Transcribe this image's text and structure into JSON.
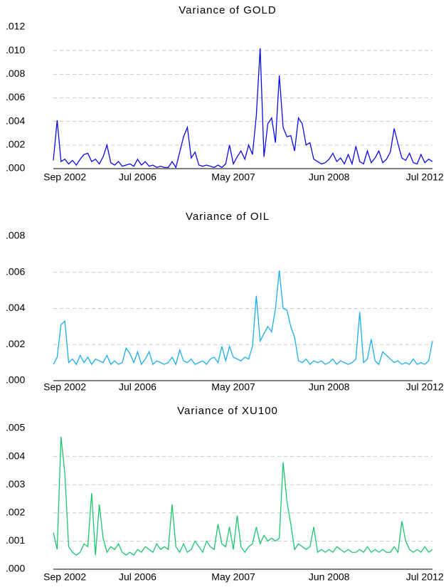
{
  "chart_data": [
    {
      "type": "line",
      "title": "Variance of GOLD",
      "color": "#0a0aee",
      "categories": [
        null,
        null,
        null,
        "Sep 2002",
        null,
        null,
        null,
        null,
        null,
        null,
        null,
        null,
        null,
        null,
        null,
        null,
        null,
        null,
        null,
        null,
        null,
        null,
        "Jul 2006",
        null,
        null,
        null,
        null,
        null,
        null,
        null,
        null,
        null,
        null,
        null,
        null,
        null,
        null,
        null,
        null,
        null,
        null,
        null,
        null,
        null,
        null,
        null,
        null,
        "May 2007",
        null,
        null,
        null,
        null,
        null,
        null,
        null,
        null,
        null,
        null,
        null,
        null,
        null,
        null,
        null,
        null,
        null,
        null,
        null,
        null,
        null,
        null,
        null,
        null,
        "Jun 2008",
        null,
        null,
        null,
        null,
        null,
        null,
        null,
        null,
        null,
        null,
        null,
        null,
        null,
        null,
        null,
        null,
        null,
        null,
        null,
        null,
        null,
        null,
        null,
        null,
        "Jul 2012",
        null,
        null
      ],
      "values": [
        0.0007,
        0.0041,
        0.0006,
        0.0008,
        0.0004,
        0.0007,
        0.0003,
        0.0008,
        0.0012,
        0.0013,
        0.0006,
        0.0008,
        0.0004,
        0.001,
        0.002,
        0.0005,
        0.0003,
        0.0006,
        0.0002,
        0.0003,
        0.0004,
        0.0002,
        0.0008,
        0.0003,
        0.0006,
        0.0002,
        0.0003,
        0.0001,
        0.0002,
        0.0001,
        0.0001,
        0.0006,
        0.0001,
        0.0014,
        0.0027,
        0.0035,
        0.0009,
        0.0014,
        0.0003,
        0.0002,
        0.0003,
        0.0002,
        0.0001,
        0.0003,
        0.0001,
        0.0004,
        0.002,
        0.0004,
        0.001,
        0.0015,
        0.0008,
        0.002,
        0.0012,
        0.0045,
        0.0102,
        0.001,
        0.0038,
        0.0043,
        0.0022,
        0.0079,
        0.0035,
        0.0027,
        0.0028,
        0.0015,
        0.0043,
        0.0038,
        0.002,
        0.0022,
        0.0008,
        0.0006,
        0.0004,
        0.0005,
        0.0008,
        0.0013,
        0.0006,
        0.0009,
        0.0004,
        0.0012,
        0.0004,
        0.0019,
        0.0006,
        0.0004,
        0.0015,
        0.0005,
        0.0009,
        0.0015,
        0.0005,
        0.0008,
        0.0014,
        0.0034,
        0.0021,
        0.0009,
        0.0007,
        0.0013,
        0.0005,
        0.0004,
        0.0012,
        0.0005,
        0.0008,
        0.0006
      ],
      "ylim": [
        0,
        0.012
      ],
      "yticks": [
        {
          "value": 0,
          "label": ".000"
        },
        {
          "value": 0.002,
          "label": ".002"
        },
        {
          "value": 0.004,
          "label": ".004"
        },
        {
          "value": 0.006,
          "label": ".006"
        },
        {
          "value": 0.008,
          "label": ".008"
        },
        {
          "value": 0.01,
          "label": ".010"
        },
        {
          "value": 0.012,
          "label": ".012"
        }
      ],
      "grid": true
    },
    {
      "type": "line",
      "title": "Variance of OIL",
      "color": "#1aaef0",
      "categories": [
        null,
        null,
        null,
        "Sep 2002",
        null,
        null,
        null,
        null,
        null,
        null,
        null,
        null,
        null,
        null,
        null,
        null,
        null,
        null,
        null,
        null,
        null,
        null,
        "Jul 2006",
        null,
        null,
        null,
        null,
        null,
        null,
        null,
        null,
        null,
        null,
        null,
        null,
        null,
        null,
        null,
        null,
        null,
        null,
        null,
        null,
        null,
        null,
        null,
        null,
        "May 2007",
        null,
        null,
        null,
        null,
        null,
        null,
        null,
        null,
        null,
        null,
        null,
        null,
        null,
        null,
        null,
        null,
        null,
        null,
        null,
        null,
        null,
        null,
        null,
        null,
        "Jun 2008",
        null,
        null,
        null,
        null,
        null,
        null,
        null,
        null,
        null,
        null,
        null,
        null,
        null,
        null,
        null,
        null,
        null,
        null,
        null,
        null,
        null,
        null,
        null,
        null,
        "Jul 2012",
        null,
        null
      ],
      "values": [
        0.0009,
        0.0013,
        0.0031,
        0.0033,
        0.001,
        0.0012,
        0.0009,
        0.0014,
        0.001,
        0.0013,
        0.0009,
        0.0012,
        0.0011,
        0.001,
        0.0014,
        0.0009,
        0.0011,
        0.0009,
        0.001,
        0.0018,
        0.0015,
        0.001,
        0.0016,
        0.0009,
        0.0012,
        0.0016,
        0.0009,
        0.0011,
        0.001,
        0.0009,
        0.001,
        0.0013,
        0.0009,
        0.0017,
        0.0011,
        0.001,
        0.0012,
        0.0009,
        0.001,
        0.0011,
        0.0009,
        0.0012,
        0.0013,
        0.001,
        0.0019,
        0.0011,
        0.0019,
        0.0013,
        0.0012,
        0.0011,
        0.0013,
        0.0012,
        0.0019,
        0.0047,
        0.0022,
        0.0026,
        0.003,
        0.0027,
        0.004,
        0.0061,
        0.004,
        0.0039,
        0.003,
        0.0024,
        0.0011,
        0.001,
        0.0012,
        0.0009,
        0.0011,
        0.001,
        0.0011,
        0.0009,
        0.001,
        0.0012,
        0.0009,
        0.0011,
        0.001,
        0.0009,
        0.001,
        0.0012,
        0.0038,
        0.001,
        0.0012,
        0.0023,
        0.0011,
        0.0009,
        0.0016,
        0.0014,
        0.0012,
        0.001,
        0.0011,
        0.0009,
        0.001,
        0.0009,
        0.0012,
        0.0009,
        0.001,
        0.0009,
        0.0011,
        0.0022
      ],
      "ylim": [
        0,
        0.008
      ],
      "yticks": [
        {
          "value": 0,
          "label": ".000"
        },
        {
          "value": 0.002,
          "label": ".002"
        },
        {
          "value": 0.004,
          "label": ".004"
        },
        {
          "value": 0.006,
          "label": ".006"
        },
        {
          "value": 0.008,
          "label": ".008"
        }
      ],
      "grid": true
    },
    {
      "type": "line",
      "title": "Variance of XU100",
      "color": "#1ec46e",
      "categories": [
        null,
        null,
        null,
        "Sep 2002",
        null,
        null,
        null,
        null,
        null,
        null,
        null,
        null,
        null,
        null,
        null,
        null,
        null,
        null,
        null,
        null,
        null,
        null,
        "Jul 2006",
        null,
        null,
        null,
        null,
        null,
        null,
        null,
        null,
        null,
        null,
        null,
        null,
        null,
        null,
        null,
        null,
        null,
        null,
        null,
        null,
        null,
        null,
        null,
        null,
        "May 2007",
        null,
        null,
        null,
        null,
        null,
        null,
        null,
        null,
        null,
        null,
        null,
        null,
        null,
        null,
        null,
        null,
        null,
        null,
        null,
        null,
        null,
        null,
        null,
        null,
        "Jun 2008",
        null,
        null,
        null,
        null,
        null,
        null,
        null,
        null,
        null,
        null,
        null,
        null,
        null,
        null,
        null,
        null,
        null,
        null,
        null,
        null,
        null,
        null,
        null,
        null,
        "Jul 2012",
        null,
        null
      ],
      "values": [
        0.0013,
        0.0007,
        0.0047,
        0.0034,
        0.0008,
        0.0006,
        0.0005,
        0.0006,
        0.0009,
        0.0008,
        0.0027,
        0.0005,
        0.0023,
        0.0011,
        0.0006,
        0.0008,
        0.0007,
        0.0009,
        0.0006,
        0.0005,
        0.0006,
        0.0005,
        0.0007,
        0.0006,
        0.0008,
        0.0007,
        0.0006,
        0.0009,
        0.0007,
        0.0008,
        0.0007,
        0.0023,
        0.0008,
        0.0006,
        0.0009,
        0.0006,
        0.0007,
        0.001,
        0.0008,
        0.0006,
        0.001,
        0.0008,
        0.0007,
        0.0016,
        0.0009,
        0.0008,
        0.0015,
        0.0007,
        0.0019,
        0.0008,
        0.0006,
        0.0008,
        0.0009,
        0.0015,
        0.0009,
        0.0012,
        0.001,
        0.0011,
        0.001,
        0.0011,
        0.0038,
        0.0024,
        0.0016,
        0.0007,
        0.0009,
        0.0008,
        0.0007,
        0.0008,
        0.0015,
        0.0006,
        0.0007,
        0.0006,
        0.0007,
        0.0006,
        0.0008,
        0.0007,
        0.0006,
        0.0007,
        0.0006,
        0.0006,
        0.0007,
        0.0006,
        0.0008,
        0.0006,
        0.0007,
        0.0006,
        0.0007,
        0.0006,
        0.0006,
        0.0008,
        0.0006,
        0.0017,
        0.001,
        0.0007,
        0.0006,
        0.0007,
        0.0006,
        0.0008,
        0.0006,
        0.0007
      ],
      "ylim": [
        0,
        0.005
      ],
      "yticks": [
        {
          "value": 0,
          "label": ".000"
        },
        {
          "value": 0.001,
          "label": ".001"
        },
        {
          "value": 0.002,
          "label": ".002"
        },
        {
          "value": 0.003,
          "label": ".003"
        },
        {
          "value": 0.004,
          "label": ".004"
        },
        {
          "value": 0.005,
          "label": ".005"
        }
      ],
      "grid": true
    }
  ]
}
